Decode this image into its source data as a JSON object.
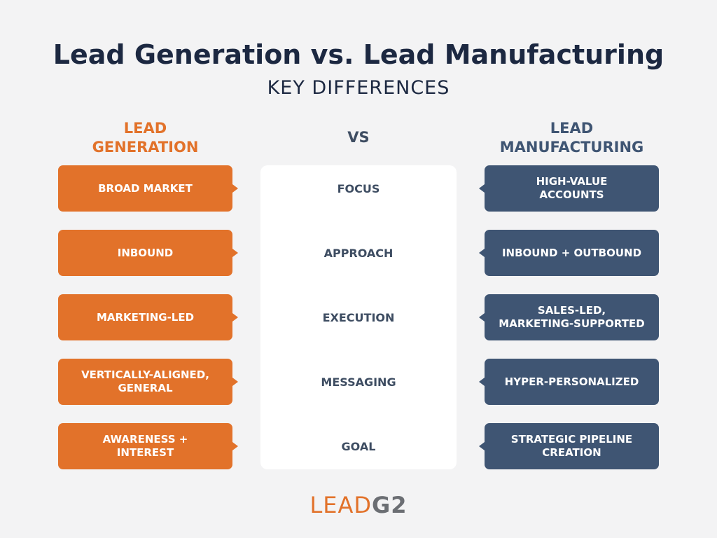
{
  "header": {
    "title": "Lead Generation vs. Lead Manufacturing",
    "subtitle": "KEY DIFFERENCES"
  },
  "columns": {
    "left": "LEAD\nGENERATION",
    "middle": "VS",
    "right": "LEAD\nMANUFACTURING"
  },
  "rows": [
    {
      "left": "BROAD MARKET",
      "criterion": "FOCUS",
      "right": "HIGH-VALUE\nACCOUNTS"
    },
    {
      "left": "INBOUND",
      "criterion": "APPROACH",
      "right": "INBOUND + OUTBOUND"
    },
    {
      "left": "MARKETING-LED",
      "criterion": "EXECUTION",
      "right": "SALES-LED,\nMARKETING-SUPPORTED"
    },
    {
      "left": "VERTICALLY-ALIGNED,\nGENERAL",
      "criterion": "MESSAGING",
      "right": "HYPER-PERSONALIZED"
    },
    {
      "left": "AWARENESS +\nINTEREST",
      "criterion": "GOAL",
      "right": "STRATEGIC PIPELINE\nCREATION"
    }
  ],
  "logo": {
    "primary": "LEAD",
    "secondary": "G2"
  }
}
